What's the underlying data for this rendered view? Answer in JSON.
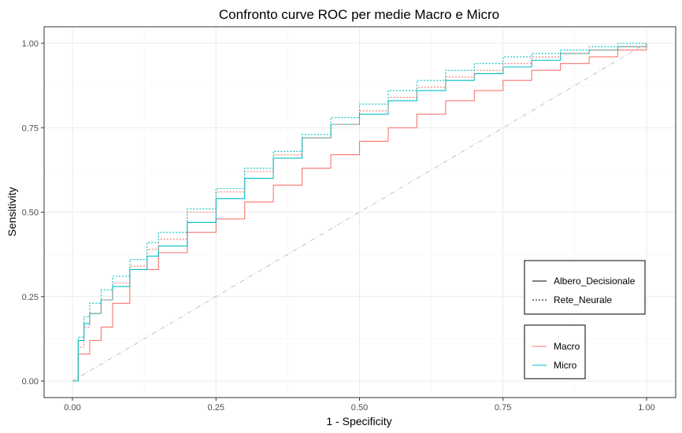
{
  "chart_data": {
    "type": "line",
    "title": "Confronto curve ROC per medie Macro e Micro",
    "xlabel": "1 - Specificity",
    "ylabel": "Sensitivity",
    "xlim": [
      0,
      1
    ],
    "ylim": [
      0,
      1
    ],
    "x_ticks": [
      "0.00",
      "0.25",
      "0.50",
      "0.75",
      "1.00"
    ],
    "y_ticks": [
      "0.00",
      "0.25",
      "0.50",
      "0.75",
      "1.00"
    ],
    "grid": true,
    "colors": {
      "Macro": "#F8766D",
      "Micro": "#00BFC4",
      "reference": "#b3b3b3"
    },
    "legend_linetype": {
      "position": "right",
      "entries": [
        {
          "label": "Albero_Decisionale",
          "linetype": "solid"
        },
        {
          "label": "Rete_Neurale",
          "linetype": "dotted"
        }
      ]
    },
    "legend_color": {
      "position": "right",
      "entries": [
        {
          "label": "Macro",
          "color": "#F8766D"
        },
        {
          "label": "Micro",
          "color": "#00BFC4"
        }
      ]
    },
    "series": [
      {
        "group": "Macro",
        "linetype": "Albero_Decisionale",
        "x": [
          0,
          0.01,
          0.03,
          0.05,
          0.07,
          0.1,
          0.15,
          0.2,
          0.25,
          0.3,
          0.35,
          0.4,
          0.45,
          0.5,
          0.55,
          0.6,
          0.65,
          0.7,
          0.75,
          0.8,
          0.85,
          0.9,
          0.95,
          1
        ],
        "y": [
          0,
          0.08,
          0.12,
          0.16,
          0.23,
          0.33,
          0.38,
          0.44,
          0.48,
          0.53,
          0.58,
          0.63,
          0.67,
          0.71,
          0.75,
          0.79,
          0.83,
          0.86,
          0.89,
          0.92,
          0.94,
          0.96,
          0.98,
          1
        ]
      },
      {
        "group": "Micro",
        "linetype": "Albero_Decisionale",
        "x": [
          0,
          0.01,
          0.02,
          0.03,
          0.05,
          0.07,
          0.1,
          0.13,
          0.15,
          0.2,
          0.25,
          0.3,
          0.35,
          0.4,
          0.45,
          0.5,
          0.55,
          0.6,
          0.65,
          0.7,
          0.75,
          0.8,
          0.85,
          0.9,
          0.95,
          1
        ],
        "y": [
          0,
          0.12,
          0.17,
          0.2,
          0.24,
          0.28,
          0.33,
          0.37,
          0.4,
          0.47,
          0.54,
          0.6,
          0.66,
          0.72,
          0.76,
          0.79,
          0.83,
          0.86,
          0.89,
          0.91,
          0.93,
          0.95,
          0.97,
          0.98,
          0.99,
          1
        ]
      },
      {
        "group": "Macro",
        "linetype": "Rete_Neurale",
        "x": [
          0,
          0.01,
          0.02,
          0.03,
          0.05,
          0.07,
          0.1,
          0.13,
          0.15,
          0.2,
          0.25,
          0.3,
          0.35,
          0.4,
          0.45,
          0.5,
          0.55,
          0.6,
          0.65,
          0.7,
          0.75,
          0.8,
          0.85,
          0.9,
          0.95,
          1
        ],
        "y": [
          0,
          0.1,
          0.16,
          0.2,
          0.24,
          0.29,
          0.34,
          0.39,
          0.42,
          0.5,
          0.56,
          0.62,
          0.67,
          0.72,
          0.76,
          0.8,
          0.84,
          0.87,
          0.9,
          0.92,
          0.94,
          0.96,
          0.97,
          0.98,
          0.99,
          1
        ]
      },
      {
        "group": "Micro",
        "linetype": "Rete_Neurale",
        "x": [
          0,
          0.01,
          0.02,
          0.03,
          0.05,
          0.07,
          0.1,
          0.13,
          0.15,
          0.2,
          0.25,
          0.3,
          0.35,
          0.4,
          0.45,
          0.5,
          0.55,
          0.6,
          0.65,
          0.7,
          0.75,
          0.8,
          0.85,
          0.9,
          0.95,
          1
        ],
        "y": [
          0,
          0.13,
          0.19,
          0.23,
          0.27,
          0.31,
          0.36,
          0.41,
          0.44,
          0.51,
          0.57,
          0.63,
          0.68,
          0.73,
          0.78,
          0.82,
          0.86,
          0.89,
          0.92,
          0.94,
          0.96,
          0.97,
          0.98,
          0.99,
          1,
          1
        ]
      },
      {
        "group": "reference",
        "linetype": "dotdash",
        "x": [
          0,
          1
        ],
        "y": [
          0,
          1
        ]
      }
    ]
  }
}
